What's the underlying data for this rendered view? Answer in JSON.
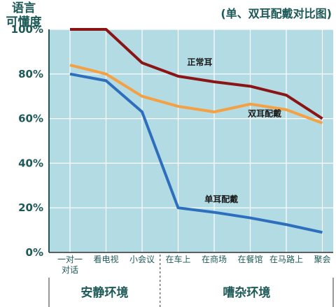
{
  "header": {
    "ylabel_line1": "语言",
    "ylabel_line2": "可懂度",
    "title": "(单、双耳配戴对比图)"
  },
  "colors": {
    "plot_background": "#b3dbe3",
    "axis": "#1d5a57"
  },
  "chart_data": {
    "type": "line",
    "categories": [
      [
        "一对一",
        "对话"
      ],
      [
        "看电视"
      ],
      [
        "小会议"
      ],
      [
        "在车上"
      ],
      [
        "在商场"
      ],
      [
        "在餐馆"
      ],
      [
        "在马路上"
      ],
      [
        "聚会"
      ]
    ],
    "ylim": [
      0,
      100
    ],
    "yticks": [
      "0%",
      "20%",
      "40%",
      "60%",
      "80%",
      "100%"
    ],
    "grid": true,
    "groups": [
      {
        "label": "安静环境",
        "range": [
          0,
          2
        ]
      },
      {
        "label": "嘈杂环境",
        "range": [
          3,
          7
        ]
      }
    ],
    "series": [
      {
        "name": "正常耳",
        "color": "#8b1414",
        "values": [
          100,
          100,
          85,
          79,
          76.5,
          74.5,
          70.5,
          60
        ],
        "label_at": 3.6,
        "label_value": 84
      },
      {
        "name": "双耳配戴",
        "color": "#f5a042",
        "values": [
          84,
          80,
          70,
          65.5,
          63,
          66.5,
          64,
          58
        ],
        "label_at": 5.4,
        "label_value": 61
      },
      {
        "name": "单耳配戴",
        "color": "#2e6fbd",
        "values": [
          80,
          77,
          63,
          20,
          18,
          15.5,
          12.5,
          9
        ],
        "label_at": 4.2,
        "label_value": 22.5
      }
    ]
  }
}
